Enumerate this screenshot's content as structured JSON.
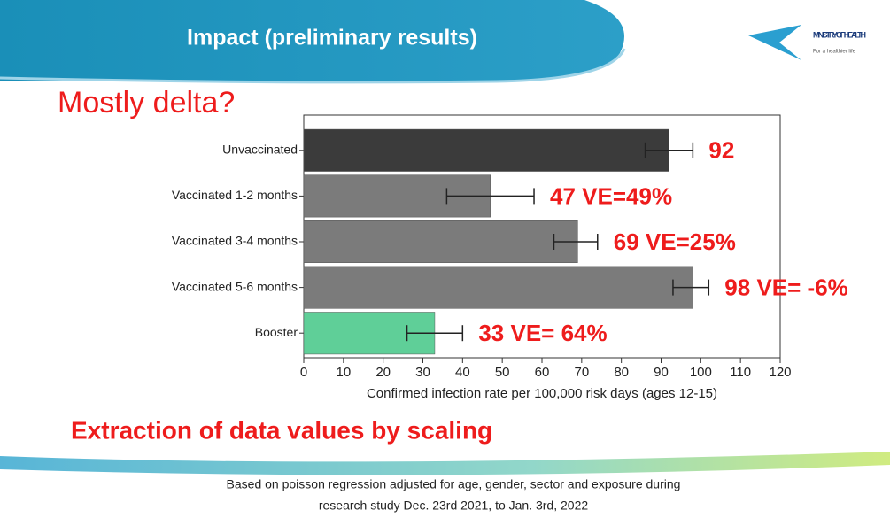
{
  "header": {
    "title": "Impact (preliminary results)",
    "logo_name": "MINISTRY OF HEALTH",
    "logo_tagline": "For a healthier life"
  },
  "subtitle": "Mostly delta?",
  "note": "Extraction of data values by scaling",
  "footnote": [
    "Based on poisson regression adjusted for age, gender, sector and exposure during",
    "research study Dec. 23rd 2021, to Jan. 3rd, 2022"
  ],
  "chart_data": {
    "type": "bar",
    "orientation": "horizontal",
    "categories": [
      "Unvaccinated",
      "Vaccinated 1-2 months",
      "Vaccinated 3-4 months",
      "Vaccinated 5-6 months",
      "Booster"
    ],
    "values": [
      92,
      47,
      69,
      98,
      33
    ],
    "value_labels": [
      "92",
      "47 VE=49%",
      "69 VE=25%",
      "98 VE= -6%",
      "33 VE= 64%"
    ],
    "ci_low": [
      86,
      36,
      63,
      93,
      26
    ],
    "ci_high": [
      98,
      58,
      74,
      102,
      40
    ],
    "colors": [
      "#3b3b3b",
      "#7b7b7b",
      "#7b7b7b",
      "#7b7b7b",
      "#5fcf98"
    ],
    "xlabel": "Confirmed infection rate per 100,000 risk days (ages 12-15)",
    "xlim": [
      0,
      120
    ],
    "xticks": [
      0,
      10,
      20,
      30,
      40,
      50,
      60,
      70,
      80,
      90,
      100,
      110,
      120
    ]
  }
}
